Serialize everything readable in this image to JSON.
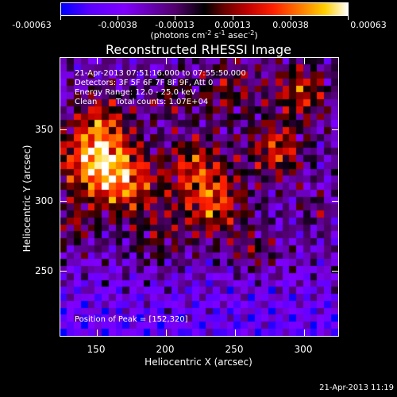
{
  "colorbar": {
    "tick_labels": [
      "-0.00063",
      "-0.00038",
      "-0.00013",
      "0.00013",
      "0.00038",
      "0.00063"
    ],
    "units": {
      "prefix": "(photons cm",
      "exp1": "-2",
      "mid1": " s",
      "exp2": "-1",
      "mid2": " asec",
      "exp3": "-2",
      "suffix": ")"
    }
  },
  "title": "Reconstructed RHESSI Image",
  "info": {
    "time_range": "21-Apr-2013 07:51:16.000 to 07:55:50.000",
    "detectors": "Detectors: 3F 5F 6F 7F 8F 9F, Att 0",
    "energy": "Energy Range: 12.0 - 25.0 keV",
    "clean_label": "Clean",
    "total_counts": "Total counts: 1.07E+04",
    "peak": "Position of Peak = [152,320]"
  },
  "x_axis": {
    "title": "Heliocentric X (arcsec)",
    "tick_labels": [
      "150",
      "200",
      "250",
      "300"
    ]
  },
  "y_axis": {
    "title": "Heliocentric Y (arcsec)",
    "tick_labels": [
      "250",
      "300",
      "350"
    ]
  },
  "timestamp": "21-Apr-2013 11:19"
}
